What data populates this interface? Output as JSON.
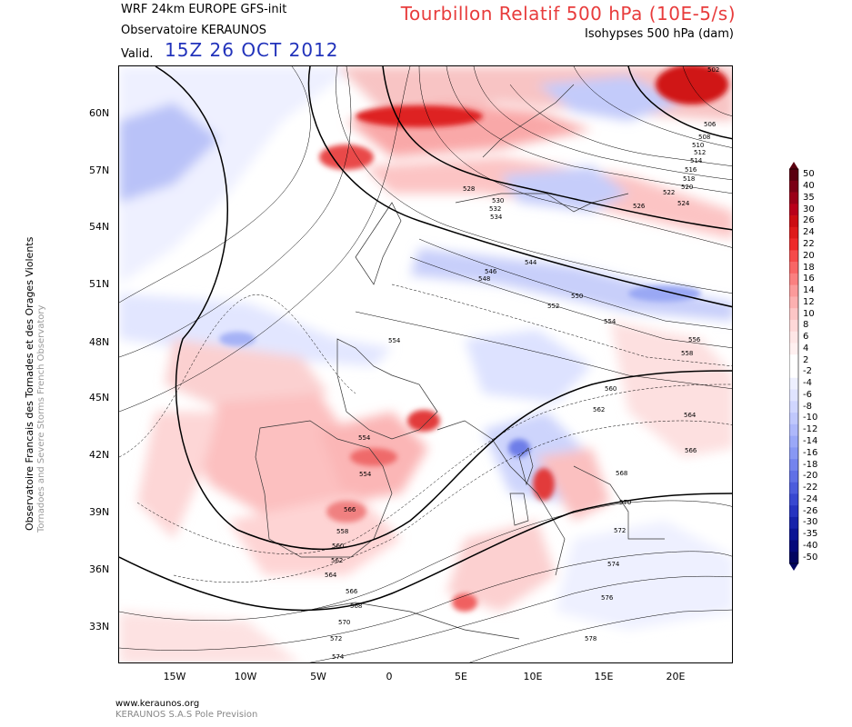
{
  "header": {
    "model": "WRF 24km EUROPE   GFS-init",
    "org": "Observatoire KERAUNOS",
    "valid_label": "Valid.",
    "valid_time": "15Z 26 OCT 2012",
    "field_title": "Tourbillon Relatif 500 hPa (10E-5/s)",
    "iso_title": "Isohypses 500 hPa (dam)"
  },
  "side": {
    "title": "Observatoire Francais des Tornades et des Orages Violents",
    "subtitle": "Tornadoes and Severe Storms French Observatory"
  },
  "axes": {
    "lat_ticks": [
      "60N",
      "57N",
      "54N",
      "51N",
      "48N",
      "45N",
      "42N",
      "39N",
      "36N",
      "33N"
    ],
    "lon_ticks": [
      "15W",
      "10W",
      "5W",
      "0",
      "5E",
      "10E",
      "15E",
      "20E"
    ]
  },
  "colorbar": {
    "labels": [
      "50",
      "40",
      "35",
      "30",
      "26",
      "24",
      "22",
      "20",
      "18",
      "16",
      "14",
      "12",
      "10",
      "8",
      "6",
      "4",
      "2",
      "-2",
      "-4",
      "-6",
      "-8",
      "-10",
      "-12",
      "-14",
      "-16",
      "-18",
      "-20",
      "-22",
      "-24",
      "-26",
      "-30",
      "-35",
      "-40",
      "-50"
    ],
    "colors": [
      "#5a0010",
      "#7a0015",
      "#9a0018",
      "#b8001a",
      "#cc0c12",
      "#de1a1a",
      "#ee2a2a",
      "#f54a4a",
      "#f86666",
      "#fa8080",
      "#fb9a9a",
      "#fcb0b0",
      "#fdc6c6",
      "#fed8d8",
      "#fee6e6",
      "#fff0f0",
      "#ffffff",
      "#ffffff",
      "#eef0ff",
      "#e0e4ff",
      "#d0d6ff",
      "#c0c8fd",
      "#aeb8fb",
      "#9aa8f8",
      "#8898f4",
      "#7484ee",
      "#6070e6",
      "#4c5cdc",
      "#3848d0",
      "#2634c0",
      "#1622aa",
      "#0a1494",
      "#04097a",
      "#020560"
    ]
  },
  "contour_labels": [
    "502",
    "506",
    "508",
    "510",
    "512",
    "514",
    "516",
    "518",
    "520",
    "522",
    "524",
    "526",
    "528",
    "530",
    "532",
    "534",
    "544",
    "546",
    "548",
    "550",
    "552",
    "554",
    "556",
    "558",
    "560",
    "562",
    "564",
    "566",
    "568",
    "570",
    "572",
    "574",
    "576",
    "578"
  ],
  "footer": {
    "url": "www.keraunos.org",
    "company": "KERAUNOS S.A.S Pole Prevision"
  }
}
